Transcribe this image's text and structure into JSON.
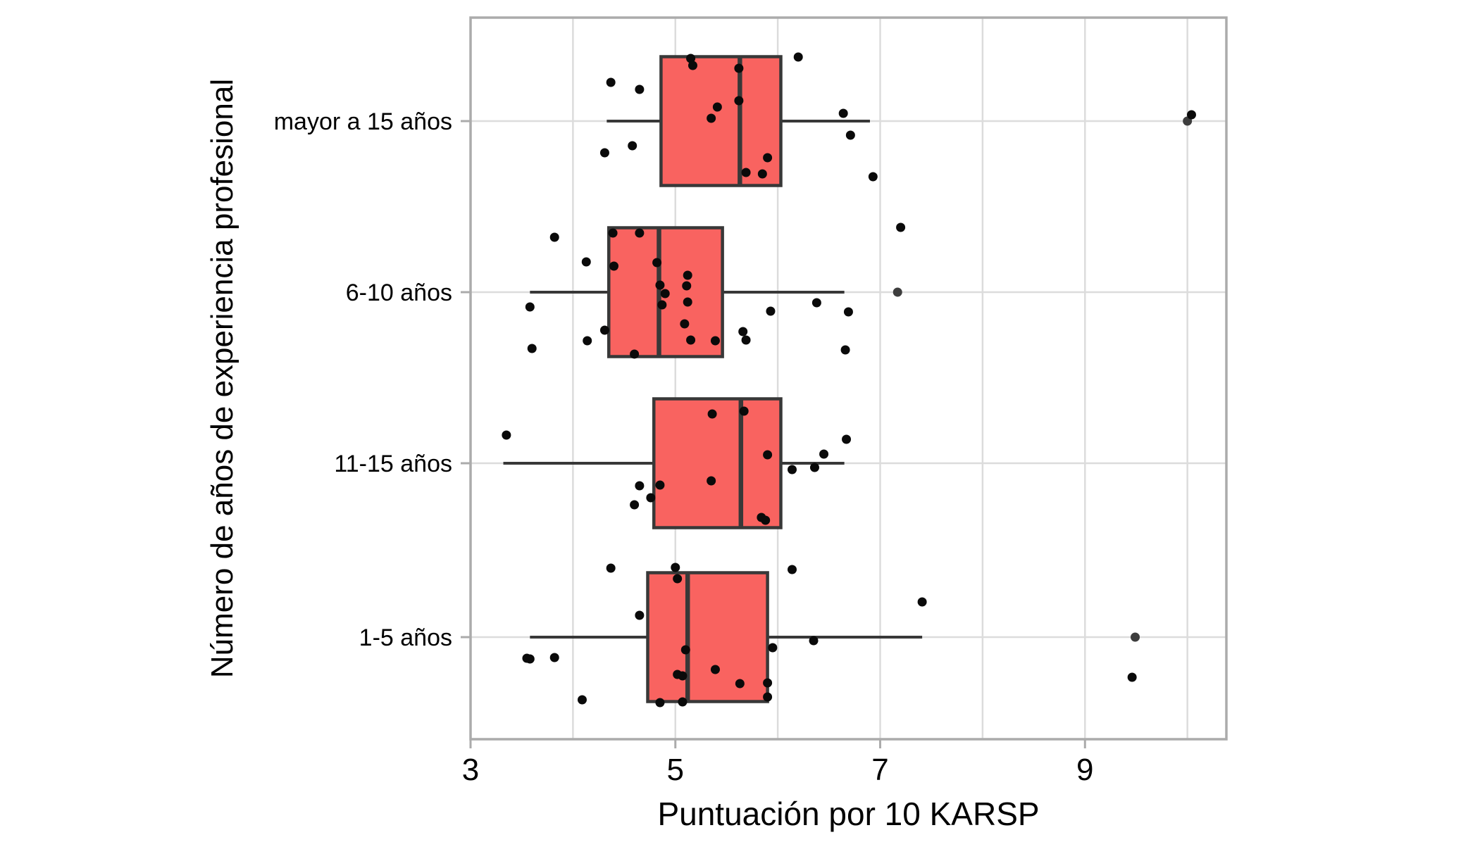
{
  "chart_data": {
    "type": "boxplot-horizontal-with-jitter",
    "title": "",
    "xlabel": "Puntuación por 10 KARSP",
    "ylabel": "Número de años de experiencia profesional",
    "xlim": [
      3,
      10.4
    ],
    "x_ticks": [
      3,
      5,
      7,
      9
    ],
    "x_gridlines": [
      3,
      4,
      5,
      6,
      7,
      8,
      9,
      10
    ],
    "grid": "on",
    "legend": "none",
    "colors": {
      "box_fill": "#F96360",
      "box_stroke": "#383838",
      "point": "#0a0a0a",
      "outlier_point": "#3d3d3d",
      "gridline": "#dcdcdc",
      "panel_border": "#ababab",
      "text": "#000000"
    },
    "categories": [
      {
        "label": "mayor a 15 años",
        "stats": {
          "whislo": 4.33,
          "q1": 4.86,
          "med": 5.63,
          "q3": 6.03,
          "whishi": 6.9
        },
        "outliers": [
          10.0
        ],
        "points": [
          [
            4.37,
            -55
          ],
          [
            4.65,
            -45
          ],
          [
            5.15,
            -89
          ],
          [
            5.17,
            -79
          ],
          [
            5.62,
            -75
          ],
          [
            5.62,
            -29
          ],
          [
            5.41,
            -20
          ],
          [
            5.35,
            -4
          ],
          [
            4.31,
            45
          ],
          [
            4.58,
            35
          ],
          [
            5.9,
            52
          ],
          [
            5.69,
            73
          ],
          [
            5.85,
            75
          ],
          [
            6.2,
            -91
          ],
          [
            6.64,
            -11
          ],
          [
            6.71,
            20
          ],
          [
            6.93,
            79
          ],
          [
            10.04,
            -9
          ]
        ]
      },
      {
        "label": "6-10 años",
        "stats": {
          "whislo": 3.58,
          "q1": 4.35,
          "med": 4.84,
          "q3": 5.46,
          "whishi": 6.65
        },
        "outliers": [
          7.17
        ],
        "points": [
          [
            3.82,
            -78
          ],
          [
            4.13,
            -43
          ],
          [
            4.39,
            -84
          ],
          [
            4.65,
            -84
          ],
          [
            4.4,
            -37
          ],
          [
            4.82,
            -42
          ],
          [
            5.12,
            -24
          ],
          [
            5.11,
            -9
          ],
          [
            4.85,
            -10
          ],
          [
            4.9,
            2
          ],
          [
            4.87,
            18
          ],
          [
            5.12,
            14
          ],
          [
            5.09,
            45
          ],
          [
            5.15,
            68
          ],
          [
            5.39,
            69
          ],
          [
            4.31,
            54
          ],
          [
            4.14,
            69
          ],
          [
            4.6,
            88
          ],
          [
            5.66,
            56
          ],
          [
            5.69,
            68
          ],
          [
            5.93,
            27
          ],
          [
            6.38,
            15
          ],
          [
            6.69,
            28
          ],
          [
            6.66,
            82
          ],
          [
            3.58,
            21
          ],
          [
            3.6,
            80
          ],
          [
            7.2,
            -92
          ]
        ]
      },
      {
        "label": "11-15 años",
        "stats": {
          "whislo": 3.32,
          "q1": 4.79,
          "med": 5.64,
          "q3": 6.03,
          "whishi": 6.65
        },
        "outliers": [],
        "points": [
          [
            3.35,
            -40
          ],
          [
            5.36,
            -70
          ],
          [
            5.67,
            -74
          ],
          [
            5.9,
            -12
          ],
          [
            5.35,
            25
          ],
          [
            4.85,
            31
          ],
          [
            4.65,
            32
          ],
          [
            4.76,
            49
          ],
          [
            4.6,
            59
          ],
          [
            5.84,
            77
          ],
          [
            5.88,
            81
          ],
          [
            6.14,
            9
          ],
          [
            6.36,
            6
          ],
          [
            6.45,
            -13
          ],
          [
            6.67,
            -34
          ]
        ]
      },
      {
        "label": "1-5 años",
        "stats": {
          "whislo": 3.58,
          "q1": 4.73,
          "med": 5.12,
          "q3": 5.9,
          "whishi": 7.41
        },
        "outliers": [
          9.49
        ],
        "points": [
          [
            4.37,
            -98
          ],
          [
            5.0,
            -99
          ],
          [
            5.02,
            -83
          ],
          [
            4.65,
            -31
          ],
          [
            5.1,
            18
          ],
          [
            5.02,
            53
          ],
          [
            5.07,
            55
          ],
          [
            5.39,
            46
          ],
          [
            5.63,
            66
          ],
          [
            5.9,
            65
          ],
          [
            5.9,
            85
          ],
          [
            4.85,
            93
          ],
          [
            5.07,
            92
          ],
          [
            4.09,
            89
          ],
          [
            3.55,
            30
          ],
          [
            3.58,
            31
          ],
          [
            3.82,
            29
          ],
          [
            6.14,
            -96
          ],
          [
            5.95,
            15
          ],
          [
            6.35,
            5
          ],
          [
            7.41,
            -50
          ],
          [
            9.46,
            57
          ]
        ]
      }
    ]
  }
}
